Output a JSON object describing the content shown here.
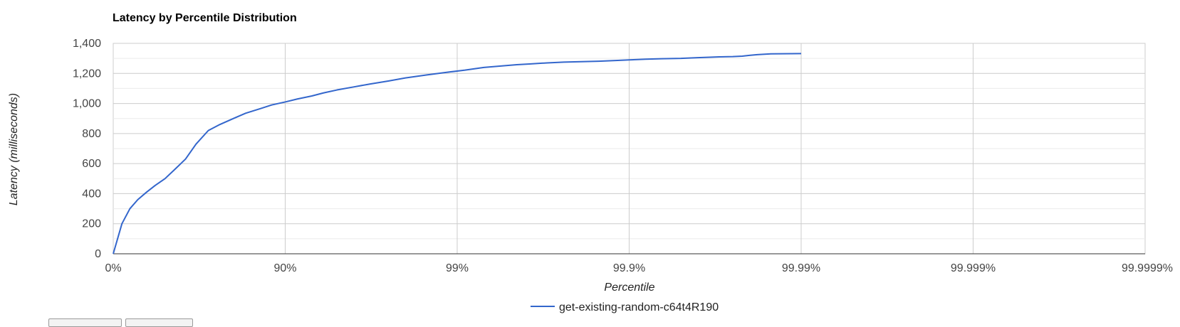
{
  "chart_data": {
    "type": "line",
    "title": "Latency by Percentile Distribution",
    "xlabel": "Percentile",
    "ylabel": "Latency (milliseconds)",
    "x_scale": "log-nines",
    "x_ticks": [
      "0%",
      "90%",
      "99%",
      "99.9%",
      "99.99%",
      "99.999%",
      "99.9999%"
    ],
    "x_tick_percentiles": [
      0,
      90,
      99,
      99.9,
      99.99,
      99.999,
      99.9999
    ],
    "xlim": [
      0,
      99.9999
    ],
    "ylim": [
      0,
      1400
    ],
    "y_ticks": [
      0,
      200,
      400,
      600,
      800,
      1000,
      1200,
      1400
    ],
    "y_tick_labels": [
      "0",
      "200",
      "400",
      "600",
      "800",
      "1,000",
      "1,200",
      "1,400"
    ],
    "grid": true,
    "legend_position": "bottom",
    "series": [
      {
        "name": "get-existing-random-c64t4R190",
        "color": "#3366cc",
        "x": [
          0,
          11,
          20,
          28,
          36,
          43,
          50,
          56,
          62,
          67,
          72,
          76,
          80,
          83,
          86,
          88,
          90,
          91.5,
          93,
          94,
          95,
          96,
          96.8,
          97.5,
          98,
          98.5,
          98.9,
          99.1,
          99.3,
          99.45,
          99.55,
          99.62,
          99.7,
          99.76,
          99.81,
          99.85,
          99.88,
          99.9,
          99.92,
          99.935,
          99.95,
          99.96,
          99.966,
          99.97,
          99.975,
          99.978,
          99.98,
          99.982,
          99.985,
          99.99
        ],
        "y": [
          0,
          200,
          300,
          360,
          410,
          455,
          500,
          560,
          630,
          730,
          820,
          860,
          900,
          935,
          965,
          990,
          1010,
          1030,
          1050,
          1070,
          1090,
          1110,
          1130,
          1150,
          1170,
          1190,
          1210,
          1222,
          1240,
          1250,
          1258,
          1263,
          1270,
          1275,
          1278,
          1281,
          1286,
          1290,
          1295,
          1298,
          1300,
          1305,
          1308,
          1310,
          1312,
          1315,
          1320,
          1325,
          1330,
          1332
        ]
      }
    ]
  }
}
